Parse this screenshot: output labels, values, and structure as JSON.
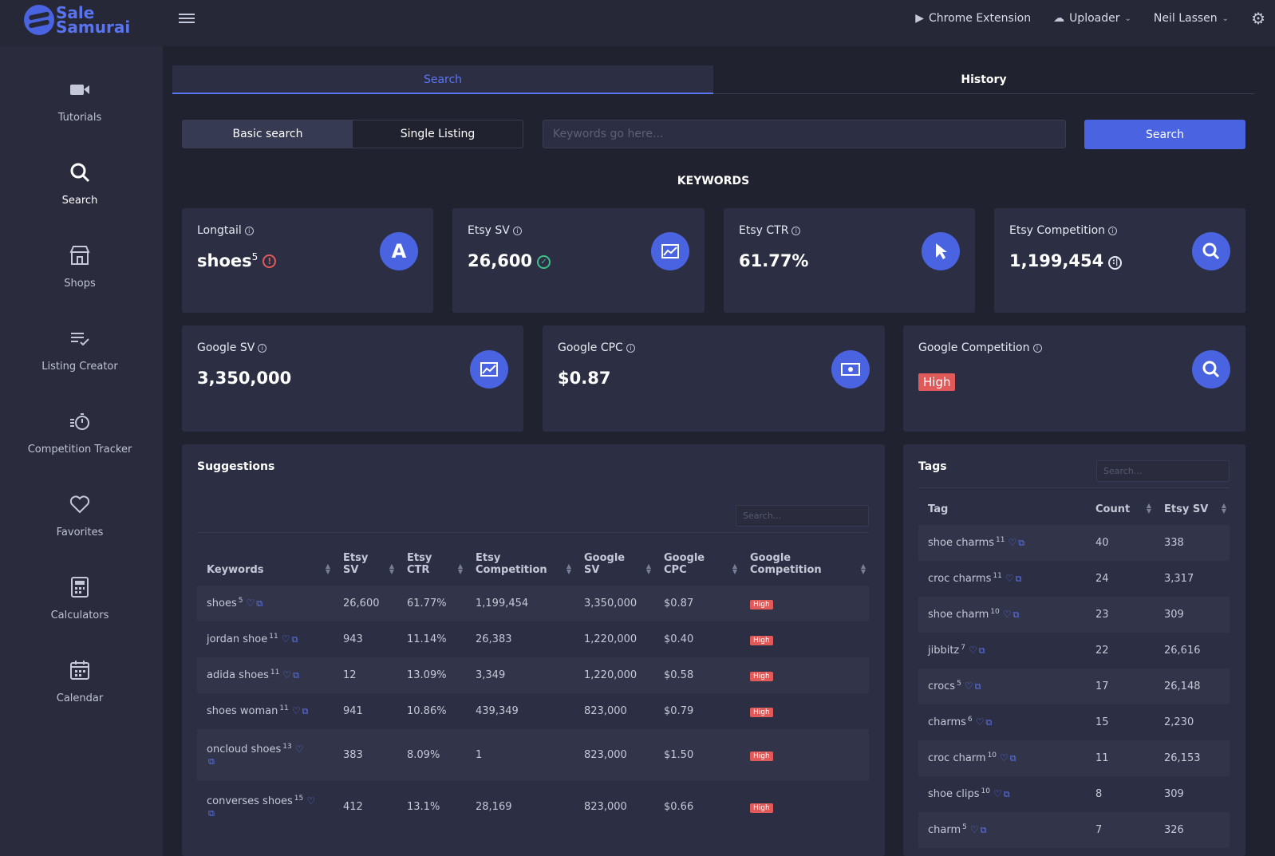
{
  "app": {
    "logo_line1": "Sale",
    "logo_line2": "Samurai"
  },
  "topbar": {
    "chrome_extension": "Chrome Extension",
    "uploader": "Uploader",
    "user": "Neil Lassen"
  },
  "sidebar": {
    "items": [
      {
        "label": "Tutorials",
        "icon": "video-icon"
      },
      {
        "label": "Search",
        "icon": "search-icon",
        "active": true
      },
      {
        "label": "Shops",
        "icon": "store-icon"
      },
      {
        "label": "Listing Creator",
        "icon": "list-check-icon"
      },
      {
        "label": "Competition Tracker",
        "icon": "stopwatch-icon"
      },
      {
        "label": "Favorites",
        "icon": "heart-icon"
      },
      {
        "label": "Calculators",
        "icon": "calculator-icon"
      },
      {
        "label": "Calendar",
        "icon": "calendar-icon"
      }
    ]
  },
  "tabs": {
    "search": "Search",
    "history": "History"
  },
  "search_mode": {
    "basic": "Basic search",
    "single": "Single Listing"
  },
  "keyword_input": {
    "placeholder": "Keywords go here...",
    "value": ""
  },
  "search_button": "Search",
  "section_title": "KEYWORDS",
  "cards": {
    "longtail": {
      "label": "Longtail",
      "value": "shoes",
      "sup": "5",
      "icon": "letter-a-icon"
    },
    "etsy_sv": {
      "label": "Etsy SV",
      "value": "26,600",
      "icon": "chart-icon"
    },
    "etsy_ctr": {
      "label": "Etsy CTR",
      "value": "61.77%",
      "icon": "cursor-icon"
    },
    "etsy_competition": {
      "label": "Etsy Competition",
      "value": "1,199,454",
      "icon": "search-icon"
    },
    "google_sv": {
      "label": "Google SV",
      "value": "3,350,000",
      "icon": "chart-icon"
    },
    "google_cpc": {
      "label": "Google CPC",
      "value": "$0.87",
      "icon": "money-icon"
    },
    "google_competition": {
      "label": "Google Competition",
      "value": "High",
      "icon": "search-icon"
    }
  },
  "suggestions": {
    "title": "Suggestions",
    "search_placeholder": "Search...",
    "headers": [
      "Keywords",
      "Etsy SV",
      "Etsy CTR",
      "Etsy Competition",
      "Google SV",
      "Google CPC",
      "Google Competition"
    ],
    "rows": [
      {
        "keyword": "shoes",
        "sup": "5",
        "etsy_sv": "26,600",
        "etsy_ctr": "61.77%",
        "etsy_comp": "1,199,454",
        "google_sv": "3,350,000",
        "google_cpc": "$0.87",
        "google_comp": "High"
      },
      {
        "keyword": "jordan shoe",
        "sup": "11",
        "etsy_sv": "943",
        "etsy_ctr": "11.14%",
        "etsy_comp": "26,383",
        "google_sv": "1,220,000",
        "google_cpc": "$0.40",
        "google_comp": "High"
      },
      {
        "keyword": "adida shoes",
        "sup": "11",
        "etsy_sv": "12",
        "etsy_ctr": "13.09%",
        "etsy_comp": "3,349",
        "google_sv": "1,220,000",
        "google_cpc": "$0.58",
        "google_comp": "High"
      },
      {
        "keyword": "shoes woman",
        "sup": "11",
        "etsy_sv": "941",
        "etsy_ctr": "10.86%",
        "etsy_comp": "439,349",
        "google_sv": "823,000",
        "google_cpc": "$0.79",
        "google_comp": "High"
      },
      {
        "keyword": "oncloud shoes",
        "sup": "13",
        "etsy_sv": "383",
        "etsy_ctr": "8.09%",
        "etsy_comp": "1",
        "google_sv": "823,000",
        "google_cpc": "$1.50",
        "google_comp": "High"
      },
      {
        "keyword": "converses shoes",
        "sup": "15",
        "etsy_sv": "412",
        "etsy_ctr": "13.1%",
        "etsy_comp": "28,169",
        "google_sv": "823,000",
        "google_cpc": "$0.66",
        "google_comp": "High"
      }
    ]
  },
  "tags": {
    "title": "Tags",
    "search_placeholder": "Search...",
    "headers": [
      "Tag",
      "Count",
      "Etsy SV"
    ],
    "rows": [
      {
        "tag": "shoe charms",
        "sup": "11",
        "count": "40",
        "etsy_sv": "338"
      },
      {
        "tag": "croc charms",
        "sup": "11",
        "count": "24",
        "etsy_sv": "3,317"
      },
      {
        "tag": "shoe charm",
        "sup": "10",
        "count": "23",
        "etsy_sv": "309"
      },
      {
        "tag": "jibbitz",
        "sup": "7",
        "count": "22",
        "etsy_sv": "26,616"
      },
      {
        "tag": "crocs",
        "sup": "5",
        "count": "17",
        "etsy_sv": "26,148"
      },
      {
        "tag": "charms",
        "sup": "6",
        "count": "15",
        "etsy_sv": "2,230"
      },
      {
        "tag": "croc charm",
        "sup": "10",
        "count": "11",
        "etsy_sv": "26,153"
      },
      {
        "tag": "shoe clips",
        "sup": "10",
        "count": "8",
        "etsy_sv": "309"
      },
      {
        "tag": "charm",
        "sup": "5",
        "count": "7",
        "etsy_sv": "326"
      }
    ]
  },
  "colors": {
    "accent": "#4a63e0",
    "danger": "#e05a5a",
    "success": "#3dbf87",
    "bg": "#20222f",
    "card": "#2c2f43"
  }
}
